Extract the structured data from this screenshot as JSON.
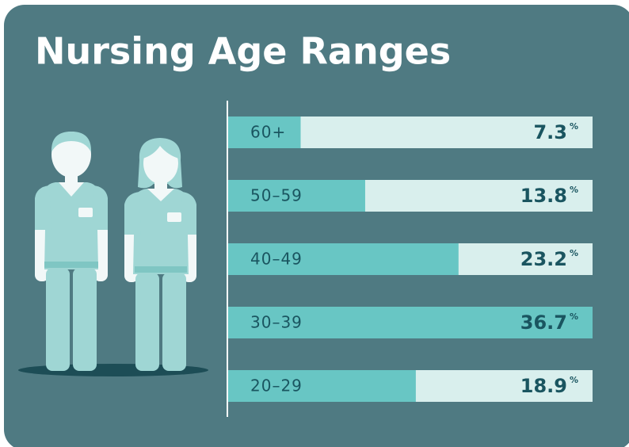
{
  "chart_data": {
    "type": "bar",
    "orientation": "horizontal",
    "title": "Nursing Age Ranges",
    "categories": [
      "60+",
      "50–59",
      "40–49",
      "30–39",
      "20–29"
    ],
    "values": [
      7.3,
      13.8,
      23.2,
      36.7,
      18.9
    ],
    "value_labels": [
      "7.3%",
      "13.8%",
      "23.2%",
      "36.7%",
      "18.9%"
    ],
    "xlim": [
      0,
      36.7
    ],
    "color": "#68c6c4",
    "track_color": "#d9efed"
  }
}
